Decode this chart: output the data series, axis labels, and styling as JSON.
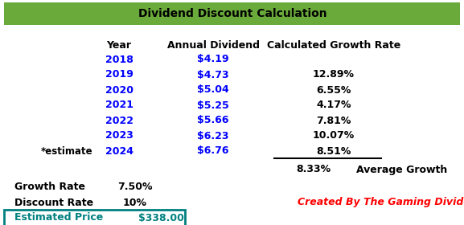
{
  "title": "Dividend Discount Calculation",
  "title_bg_color": "#6aaa3a",
  "title_text_color": "#000000",
  "header_row": [
    "Year",
    "Annual Dividend",
    "Calculated Growth Rate"
  ],
  "years": [
    "2018",
    "2019",
    "2020",
    "2021",
    "2022",
    "2023",
    "2024"
  ],
  "dividends": [
    "$4.19",
    "$4.73",
    "$5.04",
    "$5.25",
    "$5.66",
    "$6.23",
    "$6.76"
  ],
  "growth_rates": [
    "",
    "12.89%",
    "6.55%",
    "4.17%",
    "7.81%",
    "10.07%",
    "8.51%"
  ],
  "estimate_label": "*estimate",
  "avg_growth_label": "8.33%",
  "avg_growth_text": "Average Growth",
  "growth_rate_label": "Growth Rate",
  "growth_rate_value": "7.50%",
  "discount_rate_label": "Discount Rate",
  "discount_rate_value": "10%",
  "est_price_label": "Estimated Price",
  "est_price_value": "$338.00",
  "credit_text": "Created By The Gaming Dividend",
  "credit_color": "#ff0000",
  "teal_color": "#008080",
  "blue_color": "#0000ff",
  "black_color": "#000000",
  "title_fs": 10,
  "header_fs": 9,
  "data_fs": 9
}
